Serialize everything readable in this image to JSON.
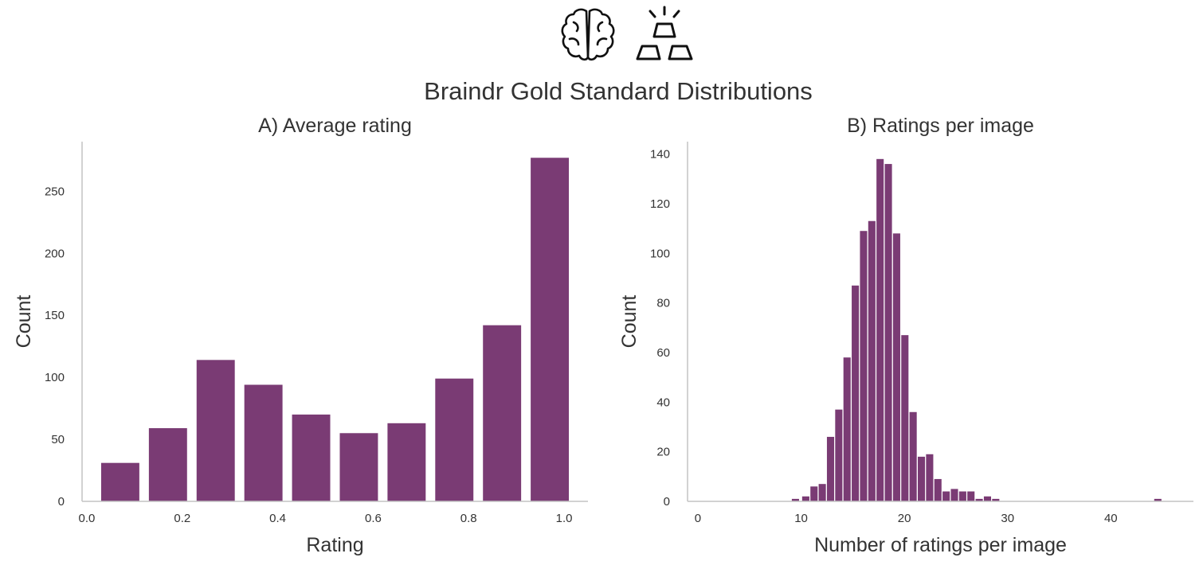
{
  "header": {
    "logo_icons": [
      "brain-icon",
      "gold-bars-icon"
    ],
    "suptitle": "Braindr Gold Standard Distributions"
  },
  "colors": {
    "bar": "#7a3b74",
    "axis": "#c4c4c4",
    "text": "#333333"
  },
  "chart_data": [
    {
      "type": "bar",
      "title": "A) Average rating",
      "xlabel": "Rating",
      "ylabel": "Count",
      "xlim": [
        -0.01,
        1.05
      ],
      "ylim": [
        0,
        290
      ],
      "xticks": [
        0.0,
        0.2,
        0.4,
        0.6,
        0.8,
        1.0
      ],
      "xtick_labels": [
        "0.0",
        "0.2",
        "0.4",
        "0.6",
        "0.8",
        "1.0"
      ],
      "yticks": [
        0,
        50,
        100,
        150,
        200,
        250
      ],
      "ytick_labels": [
        "0",
        "50",
        "100",
        "150",
        "200",
        "250"
      ],
      "grid": false,
      "bins": [
        {
          "start": 0.03,
          "end": 0.11,
          "value": 31
        },
        {
          "start": 0.13,
          "end": 0.21,
          "value": 59
        },
        {
          "start": 0.23,
          "end": 0.31,
          "value": 114
        },
        {
          "start": 0.33,
          "end": 0.41,
          "value": 94
        },
        {
          "start": 0.43,
          "end": 0.51,
          "value": 70
        },
        {
          "start": 0.53,
          "end": 0.61,
          "value": 55
        },
        {
          "start": 0.63,
          "end": 0.71,
          "value": 63
        },
        {
          "start": 0.73,
          "end": 0.81,
          "value": 99
        },
        {
          "start": 0.83,
          "end": 0.91,
          "value": 142
        },
        {
          "start": 0.93,
          "end": 1.01,
          "value": 277
        }
      ]
    },
    {
      "type": "bar",
      "title": "B) Ratings per image",
      "xlabel": "Number of ratings per image",
      "ylabel": "Count",
      "xlim": [
        -1,
        48
      ],
      "ylim": [
        0,
        145
      ],
      "xticks": [
        0,
        10,
        20,
        30,
        40
      ],
      "xtick_labels": [
        "0",
        "10",
        "20",
        "30",
        "40"
      ],
      "yticks": [
        0,
        20,
        40,
        60,
        80,
        100,
        120,
        140
      ],
      "ytick_labels": [
        "0",
        "20",
        "40",
        "60",
        "80",
        "100",
        "120",
        "140"
      ],
      "grid": false,
      "bins": [
        {
          "start": 9.1,
          "end": 9.8,
          "value": 1
        },
        {
          "start": 10.1,
          "end": 10.8,
          "value": 2
        },
        {
          "start": 10.9,
          "end": 11.6,
          "value": 6
        },
        {
          "start": 11.7,
          "end": 12.4,
          "value": 7
        },
        {
          "start": 12.5,
          "end": 13.2,
          "value": 26
        },
        {
          "start": 13.3,
          "end": 14.0,
          "value": 37
        },
        {
          "start": 14.1,
          "end": 14.8,
          "value": 58
        },
        {
          "start": 14.9,
          "end": 15.6,
          "value": 87
        },
        {
          "start": 15.7,
          "end": 16.4,
          "value": 109
        },
        {
          "start": 16.5,
          "end": 17.2,
          "value": 113
        },
        {
          "start": 17.3,
          "end": 18.0,
          "value": 138
        },
        {
          "start": 18.1,
          "end": 18.8,
          "value": 136
        },
        {
          "start": 18.9,
          "end": 19.6,
          "value": 108
        },
        {
          "start": 19.7,
          "end": 20.4,
          "value": 67
        },
        {
          "start": 20.5,
          "end": 21.2,
          "value": 36
        },
        {
          "start": 21.3,
          "end": 22.0,
          "value": 18
        },
        {
          "start": 22.1,
          "end": 22.8,
          "value": 19
        },
        {
          "start": 22.9,
          "end": 23.6,
          "value": 9
        },
        {
          "start": 23.7,
          "end": 24.4,
          "value": 4
        },
        {
          "start": 24.5,
          "end": 25.2,
          "value": 5
        },
        {
          "start": 25.3,
          "end": 26.0,
          "value": 4
        },
        {
          "start": 26.1,
          "end": 26.8,
          "value": 4
        },
        {
          "start": 26.9,
          "end": 27.6,
          "value": 1
        },
        {
          "start": 27.7,
          "end": 28.4,
          "value": 2
        },
        {
          "start": 28.5,
          "end": 29.2,
          "value": 1
        },
        {
          "start": 44.2,
          "end": 44.9,
          "value": 1
        }
      ]
    }
  ]
}
